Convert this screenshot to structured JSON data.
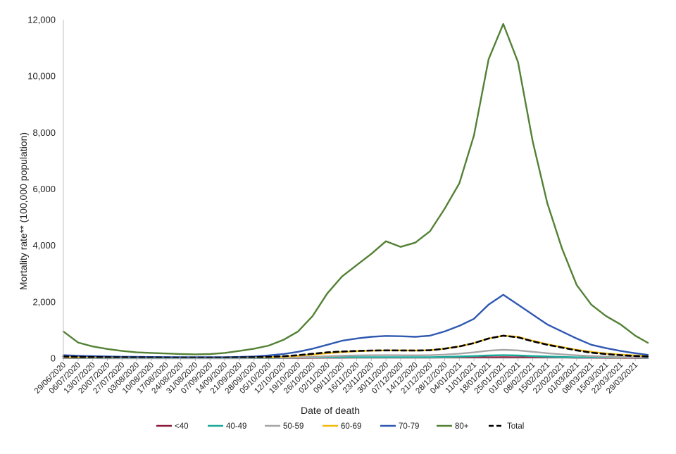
{
  "chart_data": {
    "type": "line",
    "title": "",
    "xlabel": "Date of death",
    "ylabel": "Mortality rate** (100,000 population)",
    "ylim": [
      0,
      12000
    ],
    "y_ticks": [
      "0",
      "2,000",
      "4,000",
      "6,000",
      "8,000",
      "10,000",
      "12,000"
    ],
    "x_tick_labels": [
      "29/06/2020",
      "06/07/2020",
      "13/07/2020",
      "20/07/2020",
      "27/07/2020",
      "03/08/2020",
      "10/08/2020",
      "17/08/2020",
      "24/08/2020",
      "31/08/2020",
      "07/09/2020",
      "14/09/2020",
      "21/09/2020",
      "28/09/2020",
      "05/10/2020",
      "12/10/2020",
      "19/10/2020",
      "26/10/2020",
      "02/11/2020",
      "09/11/2020",
      "16/11/2020",
      "23/11/2020",
      "30/11/2020",
      "07/12/2020",
      "14/12/2020",
      "21/12/2020",
      "28/12/2020",
      "04/01/2021",
      "11/01/2021",
      "18/01/2021",
      "25/01/2021",
      "01/02/2021",
      "08/02/2021",
      "15/02/2021",
      "22/02/2021",
      "01/03/2021",
      "08/03/2021",
      "15/03/2021",
      "22/03/2021",
      "29/03/2021"
    ],
    "x": [
      "29/06/2020",
      "06/07/2020",
      "13/07/2020",
      "20/07/2020",
      "27/07/2020",
      "03/08/2020",
      "10/08/2020",
      "17/08/2020",
      "24/08/2020",
      "31/08/2020",
      "07/09/2020",
      "14/09/2020",
      "21/09/2020",
      "28/09/2020",
      "05/10/2020",
      "12/10/2020",
      "19/10/2020",
      "26/10/2020",
      "02/11/2020",
      "09/11/2020",
      "16/11/2020",
      "23/11/2020",
      "30/11/2020",
      "07/12/2020",
      "14/12/2020",
      "21/12/2020",
      "28/12/2020",
      "04/01/2021",
      "11/01/2021",
      "18/01/2021",
      "25/01/2021",
      "01/02/2021",
      "08/02/2021",
      "15/02/2021",
      "22/02/2021",
      "01/03/2021",
      "08/03/2021",
      "15/03/2021",
      "22/03/2021",
      "29/03/2021",
      "04/04/2021"
    ],
    "legend_position": "bottom",
    "grid": false,
    "series": [
      {
        "name": "<40",
        "color": "#8b1a3a",
        "dash": false,
        "values": [
          5,
          4,
          4,
          3,
          3,
          3,
          3,
          3,
          3,
          3,
          3,
          3,
          3,
          4,
          4,
          5,
          6,
          8,
          10,
          12,
          14,
          15,
          15,
          15,
          15,
          16,
          18,
          22,
          28,
          35,
          38,
          35,
          28,
          22,
          17,
          13,
          10,
          8,
          7,
          6,
          5
        ]
      },
      {
        "name": "40-49",
        "color": "#17a99a",
        "dash": false,
        "values": [
          10,
          9,
          8,
          7,
          6,
          6,
          6,
          5,
          5,
          5,
          5,
          5,
          6,
          7,
          8,
          10,
          14,
          20,
          28,
          34,
          38,
          40,
          40,
          39,
          38,
          40,
          48,
          62,
          80,
          100,
          110,
          100,
          80,
          62,
          48,
          36,
          28,
          22,
          18,
          15,
          12
        ]
      },
      {
        "name": "50-59",
        "color": "#a6a6a6",
        "dash": false,
        "values": [
          20,
          18,
          16,
          15,
          13,
          12,
          12,
          11,
          11,
          10,
          10,
          11,
          12,
          14,
          18,
          24,
          35,
          50,
          70,
          88,
          100,
          108,
          110,
          108,
          106,
          110,
          130,
          165,
          210,
          270,
          300,
          280,
          230,
          180,
          140,
          105,
          80,
          60,
          48,
          38,
          30
        ]
      },
      {
        "name": "60-69",
        "color": "#f2b90f",
        "dash": false,
        "values": [
          45,
          40,
          35,
          32,
          28,
          26,
          24,
          23,
          22,
          21,
          21,
          22,
          25,
          30,
          40,
          55,
          85,
          130,
          180,
          220,
          250,
          270,
          280,
          280,
          275,
          285,
          340,
          420,
          540,
          700,
          800,
          760,
          620,
          500,
          400,
          300,
          230,
          170,
          130,
          100,
          80
        ]
      },
      {
        "name": "70-79",
        "color": "#2f58b0",
        "dash": false,
        "values": [
          110,
          90,
          75,
          65,
          55,
          50,
          45,
          42,
          40,
          38,
          38,
          40,
          48,
          65,
          100,
          150,
          230,
          340,
          480,
          620,
          700,
          760,
          790,
          780,
          760,
          800,
          950,
          1150,
          1400,
          1900,
          2250,
          1900,
          1550,
          1200,
          950,
          700,
          480,
          360,
          260,
          180,
          120
        ]
      },
      {
        "name": "80+",
        "color": "#538135",
        "dash": false,
        "values": [
          950,
          560,
          420,
          330,
          260,
          210,
          190,
          170,
          150,
          140,
          150,
          190,
          260,
          340,
          450,
          650,
          950,
          1500,
          2300,
          2900,
          3300,
          3700,
          4150,
          3950,
          4100,
          4500,
          5300,
          6200,
          7900,
          10600,
          11850,
          10500,
          7700,
          5500,
          3900,
          2600,
          1900,
          1500,
          1200,
          800,
          550
        ]
      },
      {
        "name": "Total",
        "color": "#000000",
        "dash": true,
        "values": [
          60,
          50,
          42,
          37,
          32,
          29,
          27,
          25,
          24,
          23,
          23,
          25,
          30,
          38,
          50,
          70,
          110,
          160,
          210,
          240,
          260,
          275,
          280,
          278,
          275,
          285,
          340,
          420,
          540,
          700,
          800,
          740,
          600,
          480,
          380,
          280,
          200,
          150,
          110,
          80,
          60
        ]
      }
    ]
  }
}
